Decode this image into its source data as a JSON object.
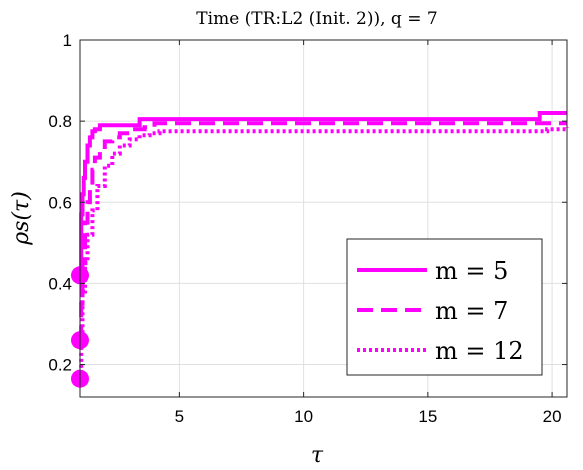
{
  "chart_data": {
    "type": "line",
    "title": "Time (TR:L2 (Init. 2)), q = 7",
    "xlabel": "τ",
    "ylabel": "ρs(τ)",
    "xlim": [
      1,
      20.6
    ],
    "ylim": [
      0.12,
      1.0
    ],
    "xticks": [
      5,
      10,
      15,
      20
    ],
    "yticks": [
      0.2,
      0.4,
      0.6,
      0.8,
      1
    ],
    "xtick_labels": [
      "5",
      "10",
      "15",
      "20"
    ],
    "ytick_labels": [
      "0.2",
      "0.4",
      "0.6",
      "0.8",
      "1"
    ],
    "grid": true,
    "legend_position": "bottom-right",
    "color": "#ff00ff",
    "series": [
      {
        "name": "m = 5",
        "style": "solid",
        "x": [
          1.0,
          1.05,
          1.1,
          1.15,
          1.2,
          1.3,
          1.4,
          1.5,
          1.6,
          1.8,
          2.0,
          3.4,
          19.5,
          20.6
        ],
        "y": [
          0.42,
          0.57,
          0.62,
          0.66,
          0.7,
          0.74,
          0.76,
          0.775,
          0.78,
          0.79,
          0.79,
          0.805,
          0.82,
          0.82
        ]
      },
      {
        "name": "m = 7",
        "style": "dashed",
        "x": [
          1.0,
          1.05,
          1.1,
          1.2,
          1.3,
          1.4,
          1.5,
          1.6,
          1.8,
          2.0,
          2.3,
          2.6,
          3.0,
          3.6,
          4.0,
          19.7,
          20.6
        ],
        "y": [
          0.26,
          0.35,
          0.45,
          0.55,
          0.6,
          0.64,
          0.68,
          0.71,
          0.73,
          0.75,
          0.76,
          0.77,
          0.78,
          0.785,
          0.795,
          0.795,
          0.795
        ]
      },
      {
        "name": "m = 12",
        "style": "dotted",
        "x": [
          1.0,
          1.05,
          1.1,
          1.2,
          1.3,
          1.5,
          1.7,
          2.0,
          2.3,
          2.6,
          3.0,
          3.4,
          3.8,
          4.2,
          19.8,
          20.6
        ],
        "y": [
          0.165,
          0.28,
          0.38,
          0.45,
          0.52,
          0.58,
          0.64,
          0.69,
          0.72,
          0.74,
          0.755,
          0.765,
          0.77,
          0.775,
          0.78,
          0.785
        ]
      }
    ]
  }
}
